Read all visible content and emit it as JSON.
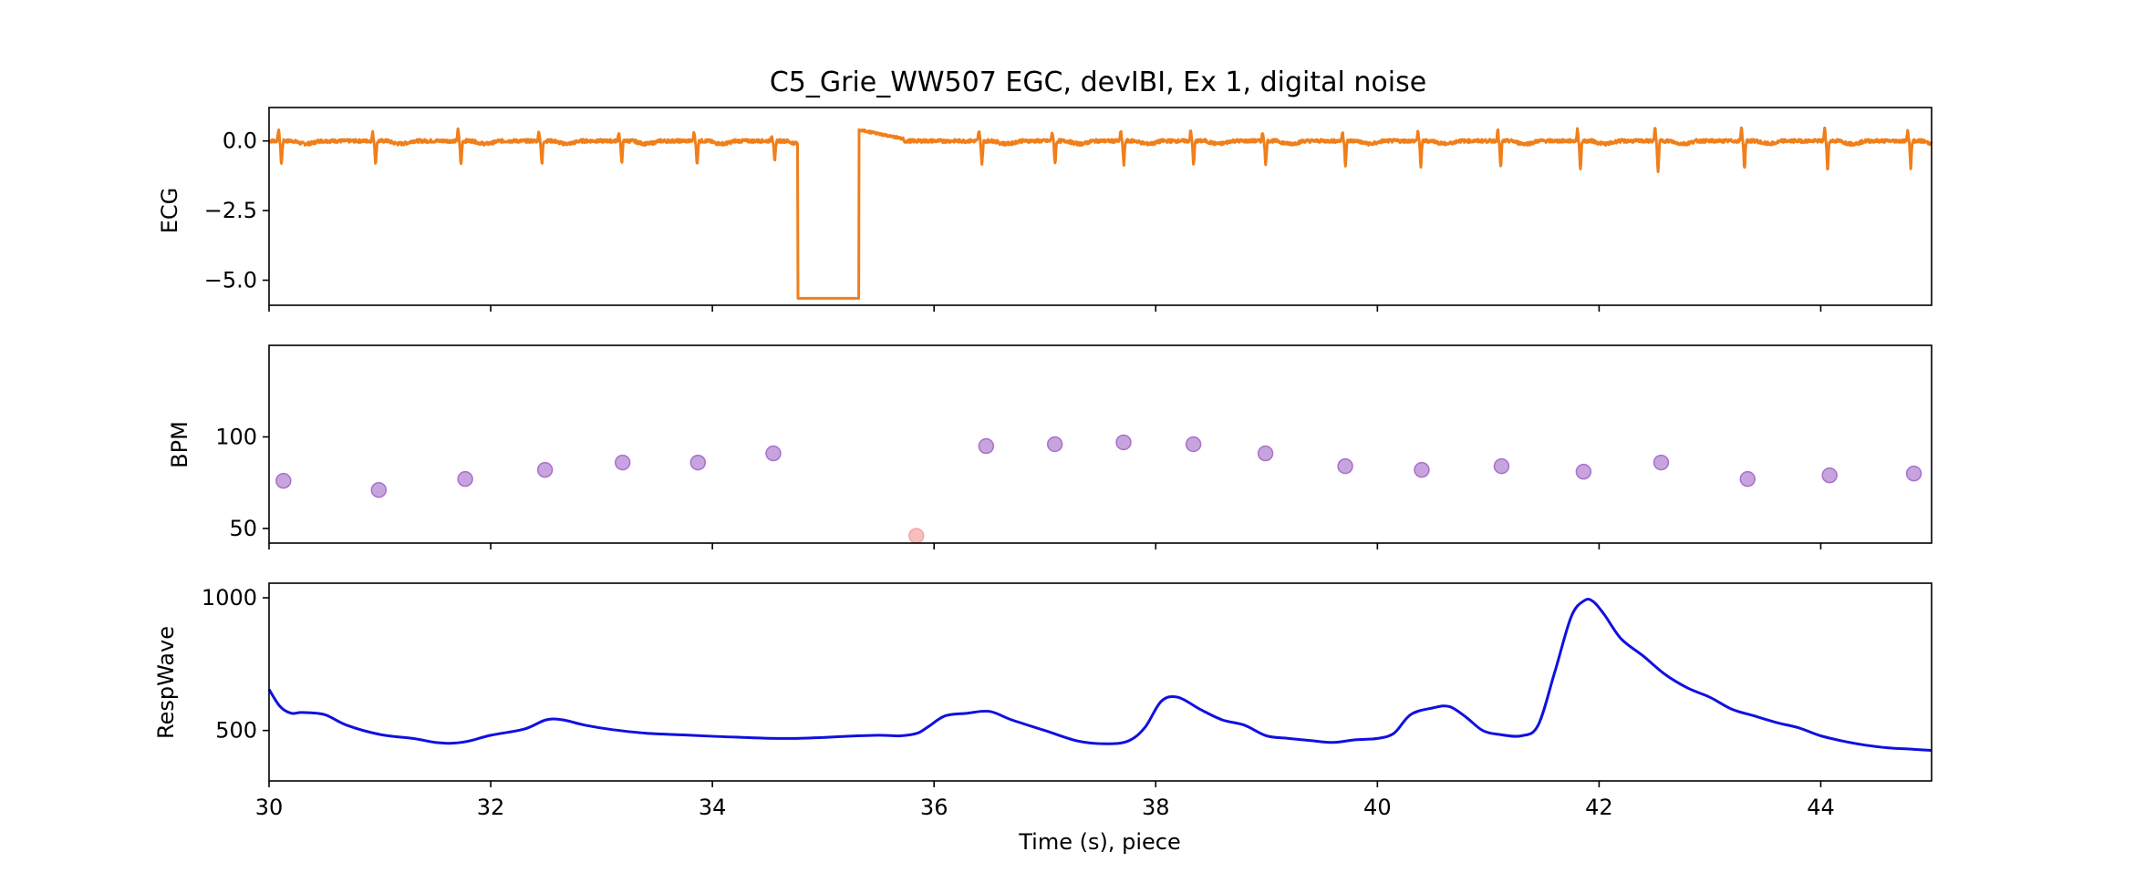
{
  "title": "C5_Grie_WW507 EGC, devIBI, Ex 1, digital noise",
  "xlabel": "Time (s), piece",
  "x_ticks": [
    30,
    32,
    34,
    36,
    38,
    40,
    42,
    44
  ],
  "x_tick_labels": [
    "30",
    "32",
    "34",
    "36",
    "38",
    "40",
    "42",
    "44"
  ],
  "chart_data": [
    {
      "type": "line",
      "panel": "top",
      "ylabel": "ECG",
      "xlim": [
        30,
        45
      ],
      "ylim": [
        -5.9,
        1.2
      ],
      "y_ticks": [
        0.0,
        -2.5,
        -5.0
      ],
      "y_tick_labels": [
        "0.0",
        "−2.5",
        "−5.0"
      ],
      "color": "#f07f1a",
      "baseline": 0.0,
      "beats_x": [
        30.1,
        30.95,
        31.72,
        32.45,
        33.17,
        33.85,
        34.55,
        36.42,
        37.08,
        37.7,
        38.33,
        38.98,
        39.7,
        40.38,
        41.1,
        41.82,
        42.52,
        43.3,
        44.05,
        44.8
      ],
      "beats_r_peak": [
        0.4,
        0.3,
        0.4,
        0.35,
        0.3,
        0.3,
        0.2,
        0.35,
        0.3,
        0.35,
        0.35,
        0.3,
        0.3,
        0.35,
        0.4,
        0.4,
        0.45,
        0.5,
        0.45,
        0.4
      ],
      "beats_s_trough": [
        -0.8,
        -0.8,
        -0.85,
        -0.85,
        -0.8,
        -0.85,
        -0.75,
        -0.8,
        -0.8,
        -0.85,
        -0.85,
        -0.85,
        -0.85,
        -0.9,
        -0.95,
        -1.0,
        -1.15,
        -1.0,
        -1.0,
        -0.95
      ],
      "noise_segment": {
        "x_start": 34.77,
        "x_end": 35.32,
        "value": -5.65
      }
    },
    {
      "type": "scatter",
      "panel": "middle",
      "ylabel": "BPM",
      "xlim": [
        30,
        45
      ],
      "ylim": [
        42,
        150
      ],
      "y_ticks": [
        50,
        100
      ],
      "y_tick_labels": [
        "50",
        "100"
      ],
      "color": "#9b59c4",
      "x": [
        30.13,
        30.99,
        31.77,
        32.49,
        33.19,
        33.87,
        34.55,
        36.47,
        37.09,
        37.71,
        38.34,
        38.99,
        39.71,
        40.4,
        41.12,
        41.86,
        42.56,
        43.34,
        44.08,
        44.84
      ],
      "y": [
        76,
        71,
        77,
        82,
        86,
        86,
        91,
        95,
        96,
        97,
        96,
        91,
        84,
        82,
        84,
        81,
        86,
        77,
        79,
        80
      ],
      "outlier": {
        "x": 35.84,
        "y": 46,
        "color": "#f5a3a3"
      }
    },
    {
      "type": "line",
      "panel": "bottom",
      "ylabel": "RespWave",
      "xlim": [
        30,
        45
      ],
      "ylim": [
        310,
        1055
      ],
      "y_ticks": [
        500,
        1000
      ],
      "y_tick_labels": [
        "500",
        "1000"
      ],
      "color": "#1010e0",
      "x": [
        30.0,
        30.1,
        30.2,
        30.3,
        30.5,
        30.7,
        31.0,
        31.3,
        31.5,
        31.65,
        31.8,
        32.0,
        32.3,
        32.5,
        32.65,
        32.85,
        33.1,
        33.4,
        33.8,
        34.2,
        34.6,
        34.9,
        35.2,
        35.5,
        35.7,
        35.85,
        35.95,
        36.1,
        36.3,
        36.5,
        36.7,
        37.0,
        37.3,
        37.55,
        37.75,
        37.9,
        38.05,
        38.2,
        38.4,
        38.6,
        38.8,
        39.0,
        39.2,
        39.4,
        39.6,
        39.8,
        40.0,
        40.15,
        40.3,
        40.5,
        40.65,
        40.8,
        40.95,
        41.1,
        41.3,
        41.45,
        41.6,
        41.75,
        41.87,
        41.95,
        42.05,
        42.2,
        42.4,
        42.6,
        42.8,
        43.0,
        43.2,
        43.4,
        43.6,
        43.8,
        44.0,
        44.2,
        44.4,
        44.6,
        44.8,
        45.0
      ],
      "y": [
        655,
        590,
        565,
        568,
        560,
        520,
        485,
        470,
        455,
        452,
        460,
        482,
        505,
        540,
        540,
        520,
        503,
        490,
        482,
        475,
        470,
        472,
        478,
        482,
        480,
        490,
        515,
        555,
        565,
        572,
        540,
        500,
        460,
        450,
        460,
        510,
        610,
        625,
        580,
        540,
        520,
        480,
        470,
        462,
        455,
        465,
        470,
        490,
        560,
        585,
        590,
        550,
        500,
        485,
        480,
        520,
        720,
        930,
        990,
        985,
        935,
        845,
        780,
        710,
        660,
        625,
        580,
        555,
        530,
        510,
        480,
        460,
        445,
        435,
        430,
        425
      ]
    }
  ]
}
